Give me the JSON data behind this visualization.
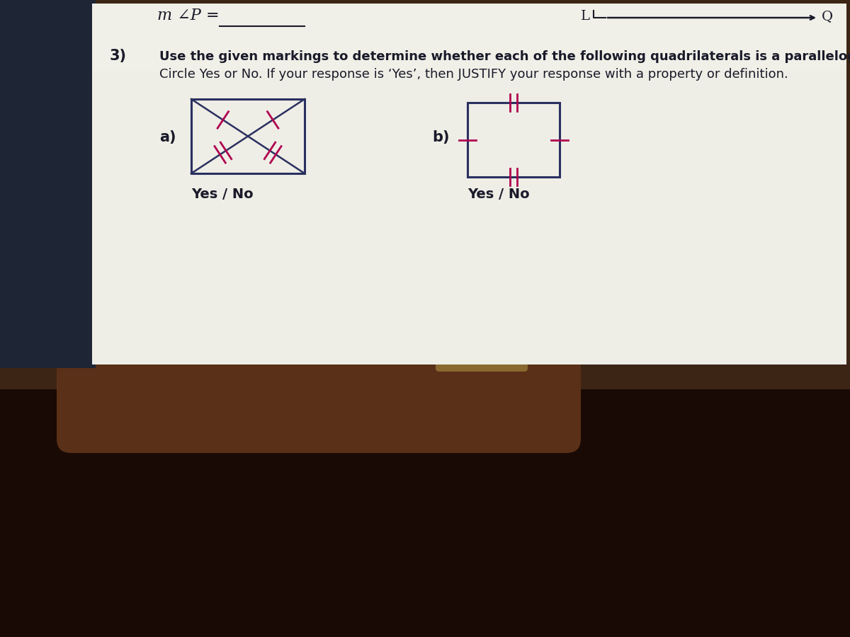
{
  "paper_color": "#eeeee6",
  "left_shadow_color": "#2a3040",
  "bg_top_color": "#c8c8c0",
  "hand_color": "#5a3020",
  "hand_dark_color": "#2a1508",
  "title_text": "m ∠P =",
  "question_number": "3)",
  "question_line1": "Use the given markings to determine whether each of the following quadrilaterals is a parallelogram.",
  "question_line2": "Circle Yes or No. If your response is ‘Yes’, then JUSTIFY your response with a property or definition.",
  "label_a": "a)",
  "label_b": "b)",
  "yes_no_a": "Yes / No",
  "yes_no_b": "Yes / No",
  "arrow_label_L": "L",
  "arrow_label_Q": "Q",
  "mark_color": "#b00050",
  "text_color": "#1a1a2a",
  "line_color": "#2a3060"
}
